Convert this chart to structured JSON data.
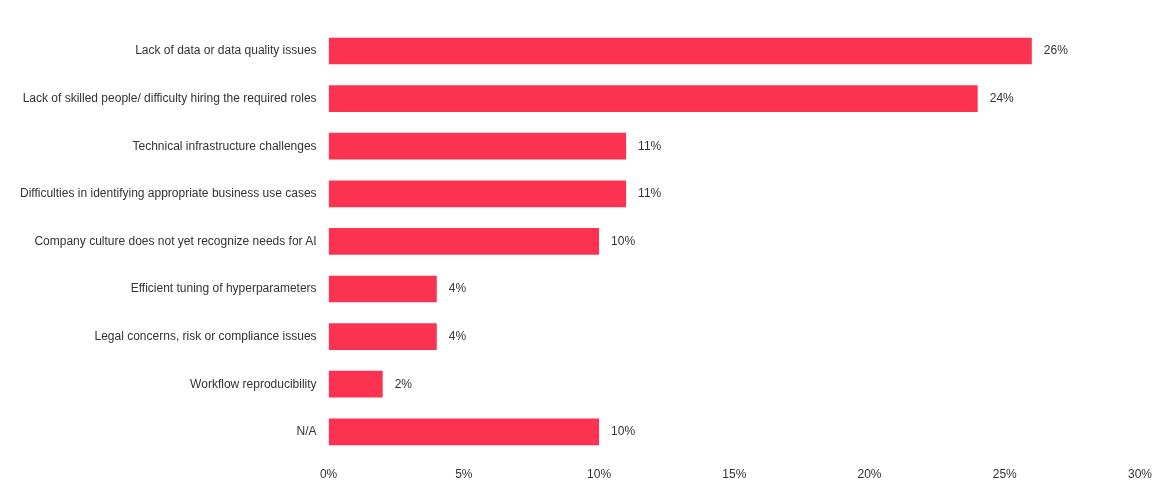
{
  "chart_data": {
    "type": "bar",
    "orientation": "horizontal",
    "categories": [
      "Lack of data or data quality issues",
      "Lack of skilled people/ difficulty hiring the required roles",
      "Technical infrastructure challenges",
      "Difficulties in identifying appropriate business use cases",
      "Company culture does not yet recognize needs for AI",
      "Efficient tuning of hyperparameters",
      "Legal concerns, risk or compliance issues",
      "Workflow reproducibility",
      "N/A"
    ],
    "values": [
      26,
      24,
      11,
      11,
      10,
      4,
      4,
      2,
      10
    ],
    "value_labels": [
      "26%",
      "24%",
      "11%",
      "11%",
      "10%",
      "4%",
      "4%",
      "2%",
      "10%"
    ],
    "color": "#fb3351",
    "xlim": [
      0,
      30
    ],
    "xticks": [
      {
        "value": 0,
        "label": "0%"
      },
      {
        "value": 5,
        "label": "5%"
      },
      {
        "value": 10,
        "label": "10%"
      },
      {
        "value": 15,
        "label": "15%"
      },
      {
        "value": 20,
        "label": "20%"
      },
      {
        "value": 25,
        "label": "25%"
      },
      {
        "value": 30,
        "label": "30%"
      }
    ],
    "grid": false
  }
}
